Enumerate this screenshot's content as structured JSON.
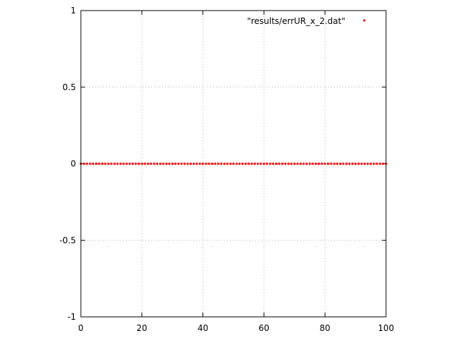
{
  "chart_data": {
    "type": "scatter",
    "title": "",
    "xlabel": "",
    "ylabel": "",
    "xlim": [
      0,
      100
    ],
    "ylim": [
      -1,
      1
    ],
    "xticks": [
      0,
      20,
      40,
      60,
      80,
      100
    ],
    "yticks": [
      -1,
      -0.5,
      0,
      0.5,
      1
    ],
    "xtick_labels": [
      "0",
      "20",
      "40",
      "60",
      "80",
      "100"
    ],
    "ytick_labels": [
      "-1",
      "-0.5",
      "0",
      "0.5",
      "1"
    ],
    "grid": true,
    "legend_position": "top-right",
    "series": [
      {
        "name": "\"results/errUR_x_2.dat\"",
        "color": "#ff0000",
        "x": [
          0,
          1,
          2,
          3,
          4,
          5,
          6,
          7,
          8,
          9,
          10,
          11,
          12,
          13,
          14,
          15,
          16,
          17,
          18,
          19,
          20,
          21,
          22,
          23,
          24,
          25,
          26,
          27,
          28,
          29,
          30,
          31,
          32,
          33,
          34,
          35,
          36,
          37,
          38,
          39,
          40,
          41,
          42,
          43,
          44,
          45,
          46,
          47,
          48,
          49,
          50,
          51,
          52,
          53,
          54,
          55,
          56,
          57,
          58,
          59,
          60,
          61,
          62,
          63,
          64,
          65,
          66,
          67,
          68,
          69,
          70,
          71,
          72,
          73,
          74,
          75,
          76,
          77,
          78,
          79,
          80,
          81,
          82,
          83,
          84,
          85,
          86,
          87,
          88,
          89,
          90,
          91,
          92,
          93,
          94,
          95,
          96,
          97,
          98,
          99,
          100
        ],
        "y": [
          0,
          0,
          0,
          0,
          0,
          0,
          0,
          0,
          0,
          0,
          0,
          0,
          0,
          0,
          0,
          0,
          0,
          0,
          0,
          0,
          0,
          0,
          0,
          0,
          0,
          0,
          0,
          0,
          0,
          0,
          0,
          0,
          0,
          0,
          0,
          0,
          0,
          0,
          0,
          0,
          0,
          0,
          0,
          0,
          0,
          0,
          0,
          0,
          0,
          0,
          0,
          0,
          0,
          0,
          0,
          0,
          0,
          0,
          0,
          0,
          0,
          0,
          0,
          0,
          0,
          0,
          0,
          0,
          0,
          0,
          0,
          0,
          0,
          0,
          0,
          0,
          0,
          0,
          0,
          0,
          0,
          0,
          0,
          0,
          0,
          0,
          0,
          0,
          0,
          0,
          0,
          0,
          0,
          0,
          0,
          0,
          0,
          0,
          0,
          0,
          0
        ]
      }
    ]
  }
}
